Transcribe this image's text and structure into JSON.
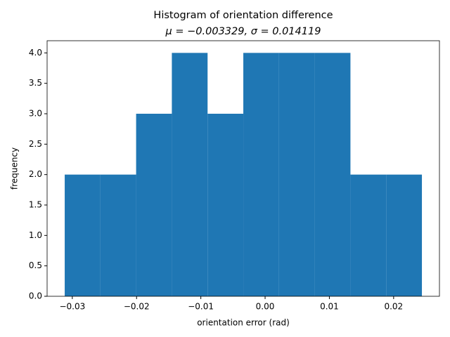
{
  "chart_data": {
    "type": "histogram",
    "title": "Histogram of orientation difference",
    "subtitle": "μ = −0.003329,  σ = 0.014119",
    "x_label": "orientation error (rad)",
    "y_label": "frequency",
    "bins": [
      -0.03118,
      -0.02562,
      -0.02007,
      -0.01451,
      -0.00895,
      -0.00339,
      0.00217,
      0.00772,
      0.01328,
      0.01884,
      0.0244
    ],
    "values": [
      2,
      2,
      3,
      4,
      3,
      4,
      4,
      4,
      2,
      2
    ],
    "color": "#1f77b4",
    "xlim": [
      -0.03392,
      0.02713
    ],
    "ylim": [
      0,
      4.2
    ],
    "xticks": [
      {
        "value": -0.03,
        "label": "−0.03"
      },
      {
        "value": -0.02,
        "label": "−0.02"
      },
      {
        "value": -0.01,
        "label": "−0.01"
      },
      {
        "value": 0,
        "label": "0.00"
      },
      {
        "value": 0.01,
        "label": "0.01"
      },
      {
        "value": 0.02,
        "label": "0.02"
      }
    ],
    "yticks": [
      {
        "value": 0,
        "label": "0.0"
      },
      {
        "value": 0.5,
        "label": "0.5"
      },
      {
        "value": 1,
        "label": "1.0"
      },
      {
        "value": 1.5,
        "label": "1.5"
      },
      {
        "value": 2,
        "label": "2.0"
      },
      {
        "value": 2.5,
        "label": "2.5"
      },
      {
        "value": 3,
        "label": "3.0"
      },
      {
        "value": 3.5,
        "label": "3.5"
      },
      {
        "value": 4,
        "label": "4.0"
      }
    ],
    "grid": false
  }
}
